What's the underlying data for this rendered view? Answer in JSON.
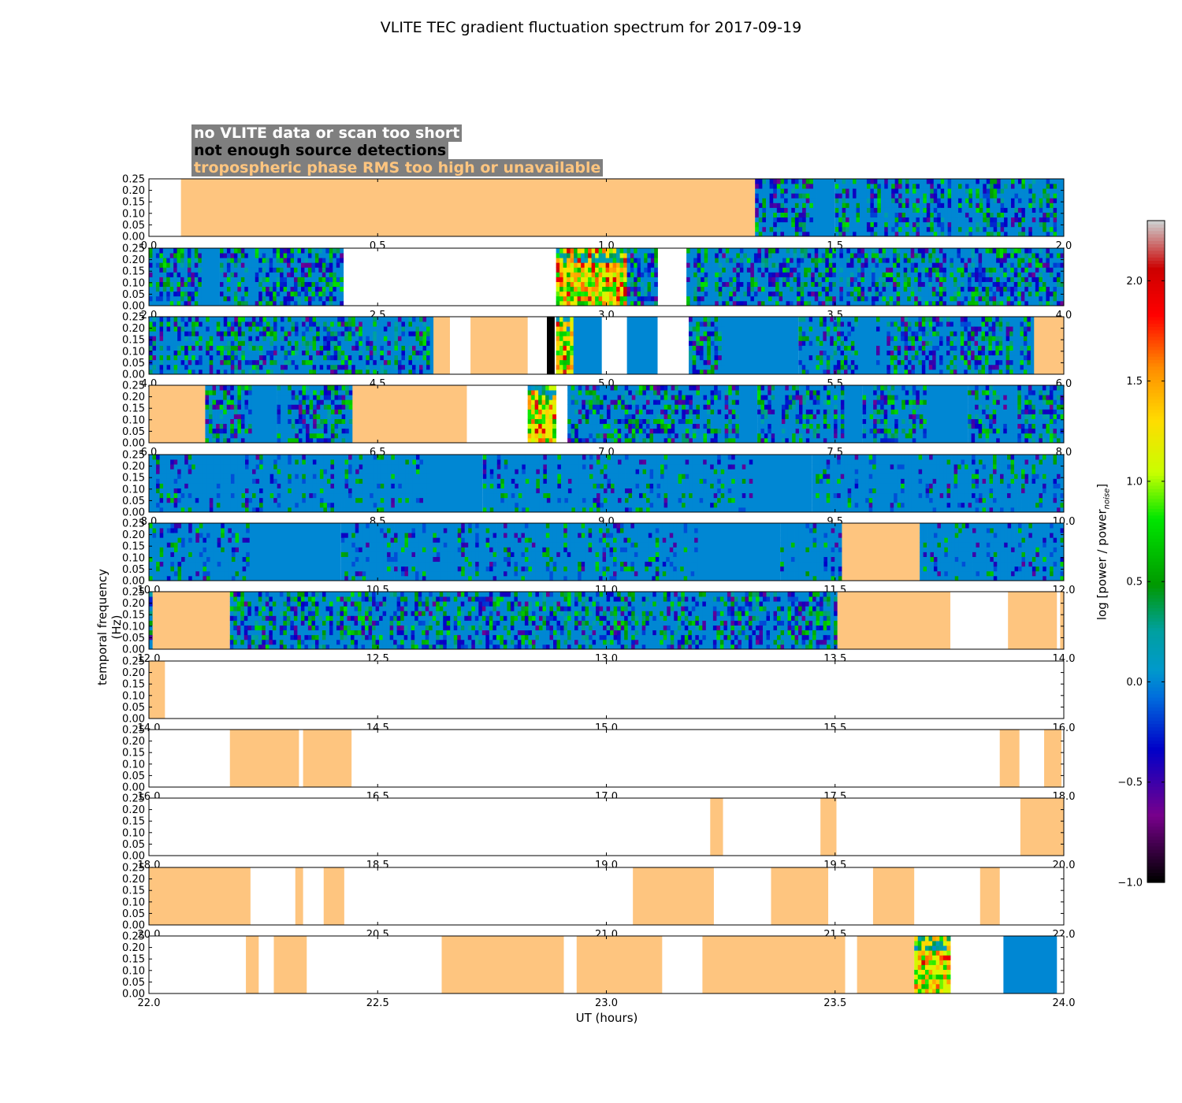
{
  "chart_data": {
    "type": "heatmap",
    "title": "VLITE TEC gradient fluctuation spectrum for 2017-09-19",
    "xlabel": "UT (hours)",
    "ylabel": "temporal frequency (Hz)",
    "colorbar_label": "log [power / power",
    "colorbar_label_subscript": "noise",
    "colorbar_label_close": "]",
    "colorbar_range": [
      -1.0,
      2.3
    ],
    "colorbar_ticks": [
      "2.0",
      "1.5",
      "1.0",
      "0.5",
      "0.0",
      "−0.5",
      "−1.0"
    ],
    "colorbar_tick_values": [
      2.0,
      1.5,
      1.0,
      0.5,
      0.0,
      -0.5,
      -1.0
    ],
    "colormap": "spectral",
    "ylim": [
      0.0,
      0.25
    ],
    "yticks": [
      "0.00",
      "0.05",
      "0.10",
      "0.15",
      "0.20",
      "0.25"
    ],
    "legend": {
      "no_data": {
        "label": "no VLITE data or scan too short",
        "color": "#ffffff"
      },
      "few_detections": {
        "label": "not enough source detections",
        "color": "#000000"
      },
      "tropo": {
        "label": "tropospheric phase RMS too high or unavailable",
        "color": "#fec57f"
      }
    },
    "panels": [
      {
        "xlim": [
          0,
          2
        ],
        "xticks": [
          "0.0",
          "0.5",
          "1.0",
          "1.5",
          "2.0"
        ],
        "segments": [
          [
            "w",
            0.0,
            0.07
          ],
          [
            "o",
            0.07,
            1.325
          ],
          [
            "d",
            1.325,
            1.46
          ],
          [
            "q",
            1.46,
            1.5
          ],
          [
            "d",
            1.5,
            2.0
          ]
        ]
      },
      {
        "xlim": [
          2,
          4
        ],
        "xticks": [
          "2.0",
          "2.5",
          "3.0",
          "3.5",
          "4.0"
        ],
        "segments": [
          [
            "d",
            2.0,
            2.115
          ],
          [
            "q",
            2.115,
            2.155
          ],
          [
            "d",
            2.155,
            2.425
          ],
          [
            "w",
            2.425,
            2.89
          ],
          [
            "h",
            2.89,
            3.045
          ],
          [
            "d",
            3.045,
            3.112
          ],
          [
            "w",
            3.112,
            3.175
          ],
          [
            "d",
            3.175,
            4.0
          ]
        ]
      },
      {
        "xlim": [
          4,
          6
        ],
        "xticks": [
          "4.0",
          "4.5",
          "5.0",
          "5.5",
          "6.0"
        ],
        "segments": [
          [
            "d",
            4.0,
            4.622
          ],
          [
            "o",
            4.622,
            4.658
          ],
          [
            "w",
            4.658,
            4.703
          ],
          [
            "o",
            4.703,
            4.828
          ],
          [
            "w",
            4.828,
            4.87
          ],
          [
            "k",
            4.87,
            4.887
          ],
          [
            "w",
            4.887,
            4.89
          ],
          [
            "h",
            4.89,
            4.928
          ],
          [
            "q",
            4.928,
            4.99
          ],
          [
            "w",
            4.99,
            5.045
          ],
          [
            "q",
            5.045,
            5.112
          ],
          [
            "w",
            5.112,
            5.18
          ],
          [
            "d",
            5.18,
            5.26
          ],
          [
            "q",
            5.26,
            5.42
          ],
          [
            "d",
            5.42,
            5.55
          ],
          [
            "q",
            5.55,
            5.59
          ],
          [
            "d",
            5.59,
            5.935
          ],
          [
            "o",
            5.935,
            6.0
          ]
        ]
      },
      {
        "xlim": [
          6,
          8
        ],
        "xticks": [
          "6.0",
          "6.5",
          "7.0",
          "7.5",
          "8.0"
        ],
        "segments": [
          [
            "o",
            6.0,
            6.123
          ],
          [
            "d",
            6.123,
            6.225
          ],
          [
            "q",
            6.225,
            6.28
          ],
          [
            "d",
            6.28,
            6.445
          ],
          [
            "o",
            6.445,
            6.695
          ],
          [
            "w",
            6.695,
            6.828
          ],
          [
            "h",
            6.828,
            6.89
          ],
          [
            "w",
            6.89,
            6.915
          ],
          [
            "d",
            6.915,
            7.29
          ],
          [
            "q",
            7.29,
            7.33
          ],
          [
            "d",
            7.33,
            7.52
          ],
          [
            "q",
            7.52,
            7.56
          ],
          [
            "d",
            7.56,
            7.7
          ],
          [
            "q",
            7.7,
            7.79
          ],
          [
            "d",
            7.79,
            8.0
          ]
        ]
      },
      {
        "xlim": [
          8,
          10
        ],
        "xticks": [
          "8.0",
          "8.5",
          "9.0",
          "9.5",
          "10.0"
        ],
        "segments": [
          [
            "m",
            8.0,
            8.615
          ],
          [
            "q",
            8.615,
            8.73
          ],
          [
            "m",
            8.73,
            9.32
          ],
          [
            "q",
            9.32,
            9.45
          ],
          [
            "m",
            9.45,
            10.0
          ]
        ]
      },
      {
        "xlim": [
          10,
          12
        ],
        "xticks": [
          "10.0",
          "10.5",
          "11.0",
          "11.5",
          "12.0"
        ],
        "segments": [
          [
            "m",
            10.0,
            10.22
          ],
          [
            "q",
            10.22,
            10.42
          ],
          [
            "m",
            10.42,
            11.2
          ],
          [
            "q",
            11.2,
            11.38
          ],
          [
            "m",
            11.38,
            11.515
          ],
          [
            "o",
            11.515,
            11.685
          ],
          [
            "m",
            11.685,
            12.0
          ]
        ]
      },
      {
        "xlim": [
          12,
          14
        ],
        "xticks": [
          "12.0",
          "12.5",
          "13.0",
          "13.5",
          "14.0"
        ],
        "segments": [
          [
            "d",
            12.0,
            12.008
          ],
          [
            "o",
            12.008,
            12.177
          ],
          [
            "d",
            12.177,
            13.505
          ],
          [
            "o",
            13.505,
            13.752
          ],
          [
            "w",
            13.752,
            13.878
          ],
          [
            "o",
            13.878,
            13.985
          ],
          [
            "w",
            13.985,
            13.992
          ],
          [
            "o",
            13.992,
            14.0
          ]
        ]
      },
      {
        "xlim": [
          14,
          16
        ],
        "xticks": [
          "14.0",
          "14.5",
          "15.0",
          "15.5",
          "16.0"
        ],
        "segments": [
          [
            "o",
            14.0,
            14.035
          ],
          [
            "w",
            14.035,
            16.0
          ]
        ]
      },
      {
        "xlim": [
          16,
          18
        ],
        "xticks": [
          "16.0",
          "16.5",
          "17.0",
          "17.5",
          "18.0"
        ],
        "segments": [
          [
            "w",
            16.0,
            16.177
          ],
          [
            "o",
            16.177,
            16.328
          ],
          [
            "w",
            16.328,
            16.337
          ],
          [
            "o",
            16.337,
            16.443
          ],
          [
            "w",
            16.443,
            17.86
          ],
          [
            "o",
            17.86,
            17.903
          ],
          [
            "w",
            17.903,
            17.957
          ],
          [
            "o",
            17.957,
            17.995
          ],
          [
            "w",
            17.995,
            18.0
          ]
        ]
      },
      {
        "xlim": [
          18,
          20
        ],
        "xticks": [
          "18.0",
          "18.5",
          "19.0",
          "19.5",
          "20.0"
        ],
        "segments": [
          [
            "w",
            18.0,
            19.227
          ],
          [
            "o",
            19.227,
            19.255
          ],
          [
            "w",
            19.255,
            19.468
          ],
          [
            "o",
            19.468,
            19.503
          ],
          [
            "w",
            19.503,
            19.905
          ],
          [
            "o",
            19.905,
            20.0
          ]
        ]
      },
      {
        "xlim": [
          20,
          22
        ],
        "xticks": [
          "20.0",
          "20.5",
          "21.0",
          "21.5",
          "22.0"
        ],
        "segments": [
          [
            "o",
            20.0,
            20.222
          ],
          [
            "w",
            20.222,
            20.32
          ],
          [
            "o",
            20.32,
            20.337
          ],
          [
            "w",
            20.337,
            20.382
          ],
          [
            "o",
            20.382,
            20.427
          ],
          [
            "w",
            20.427,
            21.058
          ],
          [
            "o",
            21.058,
            21.235
          ],
          [
            "w",
            21.235,
            21.36
          ],
          [
            "o",
            21.36,
            21.485
          ],
          [
            "w",
            21.485,
            21.583
          ],
          [
            "o",
            21.583,
            21.673
          ],
          [
            "w",
            21.673,
            21.817
          ],
          [
            "o",
            21.817,
            21.86
          ],
          [
            "w",
            21.86,
            22.0
          ]
        ]
      },
      {
        "xlim": [
          22,
          24
        ],
        "xticks": [
          "22.0",
          "22.5",
          "23.0",
          "23.5",
          "24.0"
        ],
        "segments": [
          [
            "w",
            22.0,
            22.212
          ],
          [
            "o",
            22.212,
            22.24
          ],
          [
            "w",
            22.24,
            22.273
          ],
          [
            "o",
            22.273,
            22.345
          ],
          [
            "w",
            22.345,
            22.64
          ],
          [
            "o",
            22.64,
            22.907
          ],
          [
            "w",
            22.907,
            22.935
          ],
          [
            "o",
            22.935,
            23.122
          ],
          [
            "w",
            23.122,
            23.21
          ],
          [
            "o",
            23.21,
            23.522
          ],
          [
            "w",
            23.522,
            23.548
          ],
          [
            "o",
            23.548,
            23.673
          ],
          [
            "h",
            23.673,
            23.752
          ],
          [
            "w",
            23.752,
            23.868
          ],
          [
            "q",
            23.868,
            23.985
          ],
          [
            "w",
            23.985,
            24.0
          ]
        ]
      }
    ]
  }
}
